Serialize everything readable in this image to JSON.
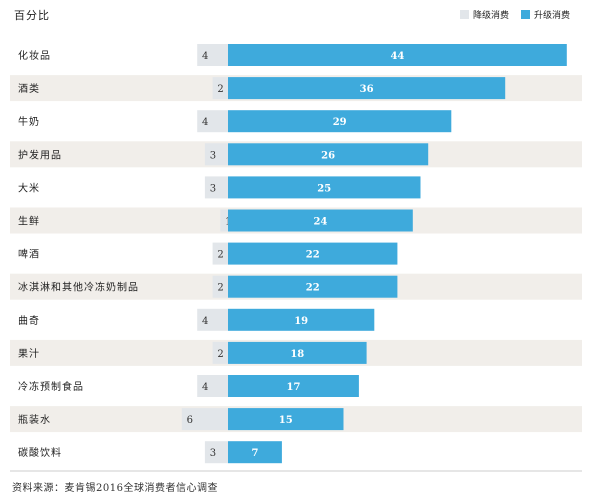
{
  "unit_label": "百分比",
  "source_note": "资料来源：麦肯锡2016全球消费者信心调查",
  "colors": {
    "downgrade": "#e2e6ea",
    "upgrade": "#3eaadc",
    "row_band": "#f1eeea"
  },
  "chart_data": {
    "type": "bar",
    "orientation": "horizontal-diverging",
    "legend_position": "top-right",
    "categories": [
      "化妆品",
      "酒类",
      "牛奶",
      "护发用品",
      "大米",
      "生鲜",
      "啤酒",
      "冰淇淋和其他冷冻奶制品",
      "曲奇",
      "果汁",
      "冷冻预制食品",
      "瓶装水",
      "碳酸饮料"
    ],
    "series": [
      {
        "name": "降级消费",
        "values": [
          4,
          2,
          4,
          3,
          3,
          1,
          2,
          2,
          4,
          2,
          4,
          6,
          3
        ]
      },
      {
        "name": "升级消费",
        "values": [
          44,
          36,
          29,
          26,
          25,
          24,
          22,
          22,
          19,
          18,
          17,
          15,
          7
        ]
      }
    ]
  }
}
